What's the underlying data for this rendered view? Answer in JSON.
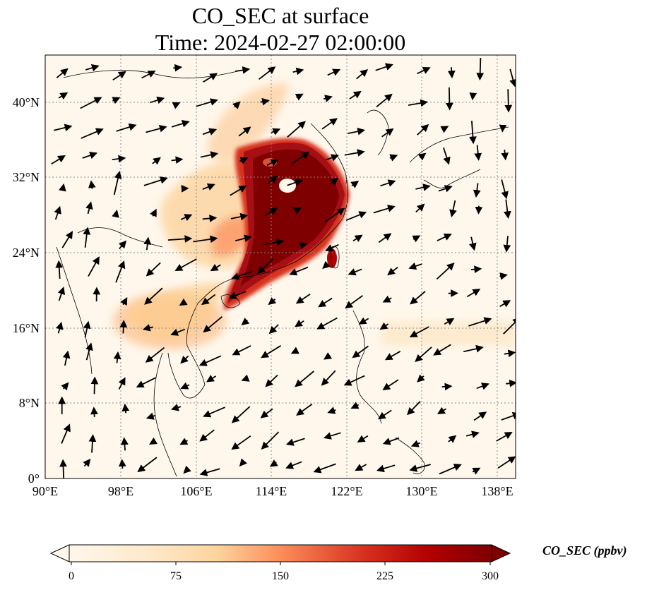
{
  "title": {
    "line1": "CO_SEC at surface",
    "line2": "Time: 2024-02-27 02:00:00"
  },
  "map": {
    "lon_range": [
      90,
      140
    ],
    "lat_range": [
      0,
      45
    ],
    "lon_ticks": [
      "90°E",
      "98°E",
      "106°E",
      "114°E",
      "122°E",
      "130°E",
      "138°E"
    ],
    "lat_ticks": [
      "0°",
      "8°N",
      "16°N",
      "24°N",
      "32°N",
      "40°N"
    ],
    "gridlines": "dotted",
    "overlay": "wind-vectors",
    "colormap": "OrRd",
    "colors": {
      "low": "#fff7ec",
      "mid": "#fdbb84",
      "high": "#7f0000"
    }
  },
  "colorbar": {
    "label": "CO_SEC (ppbv)",
    "min": 0,
    "max": 300,
    "tick_labels": [
      "0",
      "75",
      "150",
      "225",
      "300"
    ],
    "extend": "both"
  }
}
